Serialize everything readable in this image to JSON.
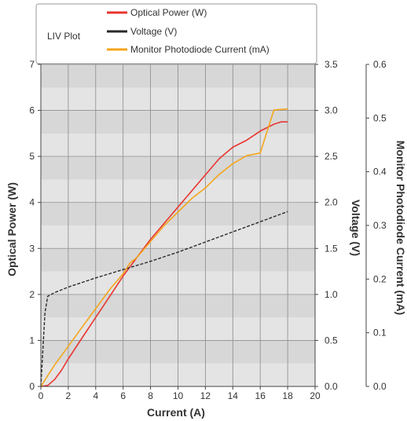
{
  "chart_data": {
    "type": "line",
    "title": "LIV Plot",
    "xlabel": "Current (A)",
    "xlim": [
      0,
      20
    ],
    "xticks": [
      "0",
      "2",
      "4",
      "6",
      "8",
      "10",
      "12",
      "14",
      "16",
      "18",
      "20"
    ],
    "grid": true,
    "legend_position": "top",
    "axes": {
      "left": {
        "label": "Optical Power (W)",
        "range": [
          0,
          7
        ],
        "ticks": [
          "0",
          "1",
          "2",
          "3",
          "4",
          "5",
          "6",
          "7"
        ]
      },
      "right1": {
        "label": "Voltage (V)",
        "range": [
          0,
          3.5
        ],
        "ticks": [
          "0.0",
          "0.5",
          "1.0",
          "1.5",
          "2.0",
          "2.5",
          "3.0",
          "3.5"
        ]
      },
      "right2": {
        "label": "Monitor Photodiode Current (mA)",
        "range": [
          0,
          0.6
        ],
        "ticks": [
          "0.0",
          "0.1",
          "0.2",
          "0.3",
          "0.4",
          "0.5",
          "0.6"
        ]
      }
    },
    "series": [
      {
        "name": "Optical Power (W)",
        "axis": "left",
        "color": "#e8352f",
        "style": "solid",
        "x": [
          0,
          0.5,
          1,
          1.5,
          2,
          3,
          4,
          5,
          6,
          7,
          8,
          9,
          10,
          11,
          12,
          13,
          14,
          15,
          16,
          17,
          17.5,
          18
        ],
        "y": [
          0,
          0.02,
          0.15,
          0.35,
          0.6,
          1.05,
          1.5,
          1.95,
          2.4,
          2.8,
          3.2,
          3.55,
          3.9,
          4.25,
          4.6,
          4.95,
          5.2,
          5.35,
          5.55,
          5.7,
          5.75,
          5.75
        ]
      },
      {
        "name": "Voltage (V)",
        "axis": "right1",
        "color": "#2a2a2a",
        "style": "dashed",
        "x": [
          0,
          0.3,
          0.5,
          1,
          2,
          4,
          6,
          8,
          10,
          12,
          14,
          16,
          18
        ],
        "y": [
          0,
          0.8,
          0.98,
          1.02,
          1.08,
          1.18,
          1.27,
          1.36,
          1.46,
          1.57,
          1.68,
          1.79,
          1.9
        ]
      },
      {
        "name": "Monitor Photodiode Current (mA)",
        "axis": "right2",
        "color": "#f5a51c",
        "style": "solid",
        "x": [
          0,
          0.5,
          1,
          2,
          3,
          4,
          5,
          6,
          6.5,
          7,
          8,
          9,
          10,
          11,
          12,
          13,
          14,
          15,
          16,
          17,
          18
        ],
        "y": [
          0,
          0.02,
          0.04,
          0.075,
          0.11,
          0.145,
          0.18,
          0.21,
          0.23,
          0.24,
          0.27,
          0.3,
          0.325,
          0.35,
          0.37,
          0.395,
          0.415,
          0.43,
          0.435,
          0.515,
          0.517
        ]
      }
    ]
  }
}
